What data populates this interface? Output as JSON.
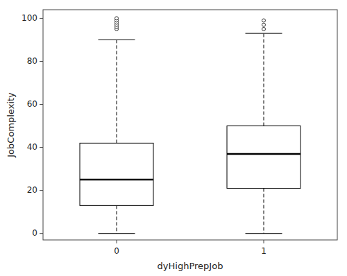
{
  "chart_data": {
    "type": "box",
    "xlabel": "dyHighPrepJob",
    "ylabel": "JobComplexity",
    "categories": [
      "0",
      "1"
    ],
    "q1": [
      13,
      21
    ],
    "median": [
      25,
      37
    ],
    "q3": [
      42,
      50
    ],
    "whisker_low": [
      0,
      0
    ],
    "whisker_high": [
      90,
      93
    ],
    "outliers": [
      [
        95,
        96,
        97,
        98,
        99,
        100
      ],
      [
        95,
        97,
        99
      ]
    ],
    "ylim": [
      -3,
      104
    ],
    "yticks": [
      0,
      20,
      40,
      60,
      80,
      100
    ],
    "color": "#000000",
    "grid": false
  }
}
